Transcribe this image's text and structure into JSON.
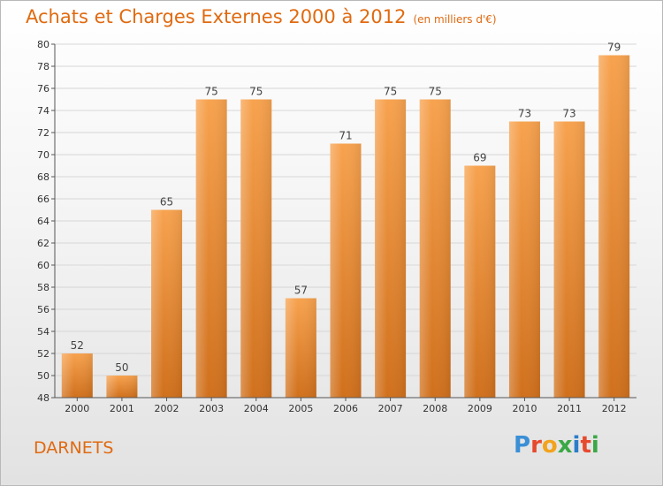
{
  "header": {
    "title": "Achats et Charges Externes 2000 à 2012",
    "subtitle": "(en milliers d'€)"
  },
  "footer": {
    "commune": "DARNETS",
    "logo": [
      "P",
      "r",
      "o",
      "x",
      "i",
      "t",
      "i"
    ]
  },
  "colors": {
    "accent": "#e06a10",
    "bar_top": "#f7a24e",
    "bar_bottom": "#d0701c",
    "logo": [
      "#3a8fd6",
      "#e64a2e",
      "#f2a31d",
      "#3aa845",
      "#2c7cc9",
      "#e64a2e",
      "#3aa845"
    ]
  },
  "chart_data": {
    "type": "bar",
    "title": "Achats et Charges Externes 2000 à 2012",
    "subtitle": "(en milliers d'€)",
    "categories": [
      "2000",
      "2001",
      "2002",
      "2003",
      "2004",
      "2005",
      "2006",
      "2007",
      "2008",
      "2009",
      "2010",
      "2011",
      "2012"
    ],
    "values": [
      52,
      50,
      65,
      75,
      75,
      57,
      71,
      75,
      75,
      69,
      73,
      73,
      79
    ],
    "yticks": [
      48,
      50,
      52,
      54,
      56,
      58,
      60,
      62,
      64,
      66,
      68,
      70,
      72,
      74,
      76,
      78,
      80
    ],
    "ylim": [
      48,
      80
    ],
    "grid": true,
    "legend": "none"
  }
}
